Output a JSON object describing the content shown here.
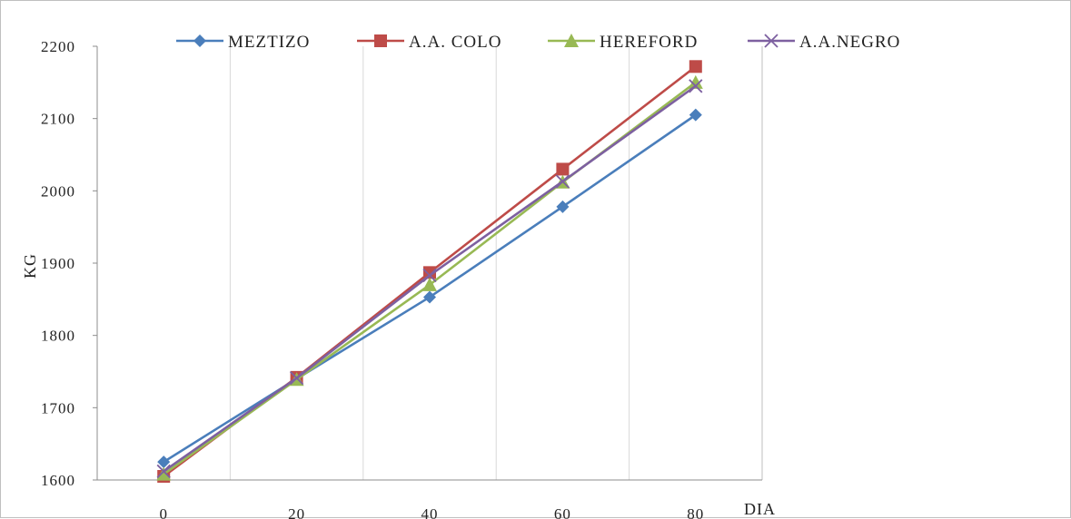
{
  "chart_data": {
    "type": "line",
    "title": "",
    "xlabel": "DIA",
    "ylabel": "KG",
    "x": [
      0,
      20,
      40,
      60,
      80
    ],
    "x_tick_labels": [
      "0",
      "20",
      "40",
      "60",
      "80"
    ],
    "ylim": [
      1600,
      2200
    ],
    "y_ticks": [
      1600,
      1700,
      1800,
      1900,
      2000,
      2100,
      2200
    ],
    "grid": "vertical",
    "legend_position": "top",
    "series": [
      {
        "name": "MEZTIZO",
        "values": [
          1625,
          1740,
          1853,
          1978,
          2105
        ],
        "color": "#4a7ebb",
        "marker": "diamond"
      },
      {
        "name": "A.A. COLO",
        "values": [
          1605,
          1742,
          1887,
          2030,
          2172
        ],
        "color": "#be4b48",
        "marker": "square"
      },
      {
        "name": "HEREFORD",
        "values": [
          1608,
          1739,
          1870,
          2012,
          2150
        ],
        "color": "#98b954",
        "marker": "triangle"
      },
      {
        "name": "A.A.NEGRO",
        "values": [
          1612,
          1741,
          1883,
          2013,
          2145
        ],
        "color": "#7d60a0",
        "marker": "x"
      }
    ]
  }
}
